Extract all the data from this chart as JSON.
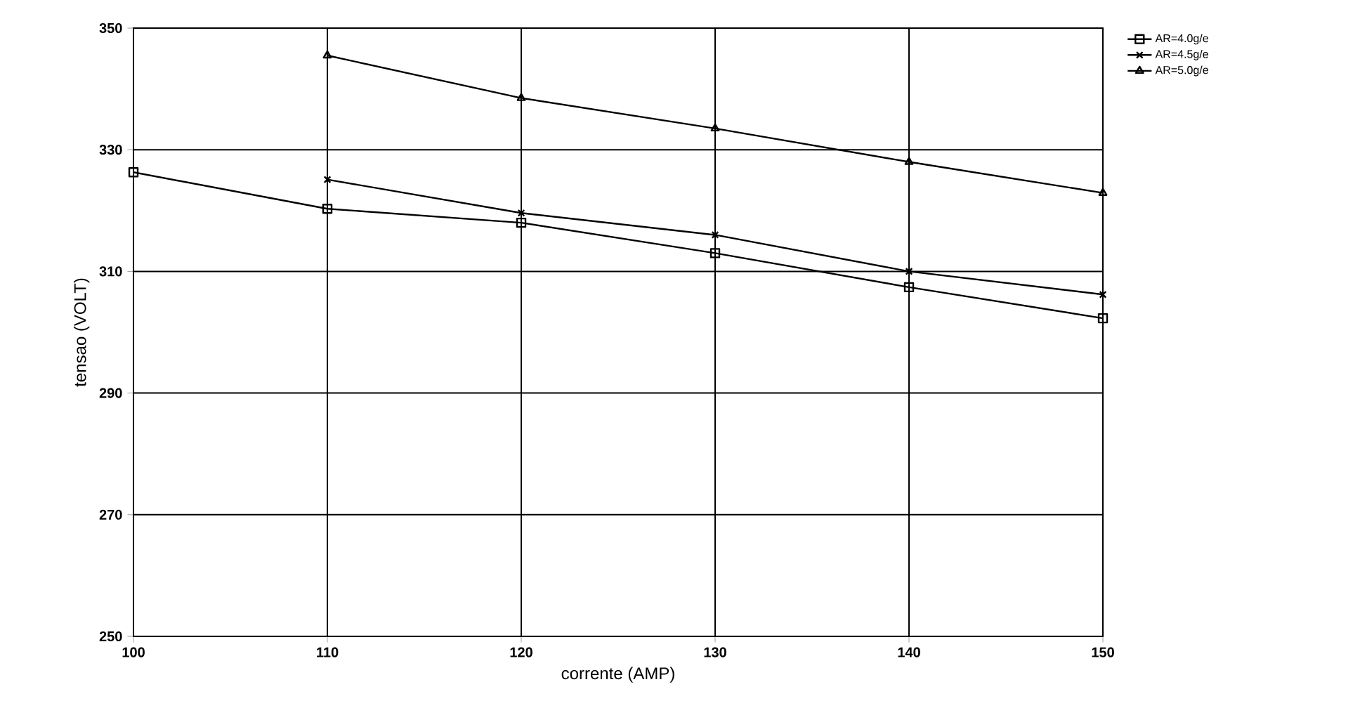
{
  "chart_data": {
    "type": "line",
    "xlabel": "corrente (AMP)",
    "ylabel": "tensao (VOLT)",
    "xlim": [
      100,
      150
    ],
    "xticks": [
      100,
      110,
      120,
      130,
      140,
      150
    ],
    "ylim": [
      250,
      350
    ],
    "yticks": [
      250,
      270,
      290,
      310,
      330,
      350
    ],
    "grid": true,
    "legend": "top right",
    "line_style": "solid",
    "series": [
      {
        "name": "AR=4.0g/e",
        "color": "#000000",
        "marker": "square",
        "x": [
          100,
          110,
          120,
          130,
          140,
          150
        ],
        "values": [
          326.3,
          320.3,
          318,
          313,
          307.4,
          302.3
        ]
      },
      {
        "name": "AR=4.5g/e",
        "color": "#000000",
        "marker": "cross",
        "x": [
          110,
          120,
          130,
          140,
          150
        ],
        "values": [
          325.1,
          319.6,
          316,
          310,
          306.2
        ]
      },
      {
        "name": "AR=5.0g/e",
        "color": "#000000",
        "marker": "triangle",
        "x": [
          110,
          120,
          130,
          140,
          150
        ],
        "values": [
          345.5,
          338.5,
          333.5,
          328,
          322.9
        ]
      }
    ]
  }
}
